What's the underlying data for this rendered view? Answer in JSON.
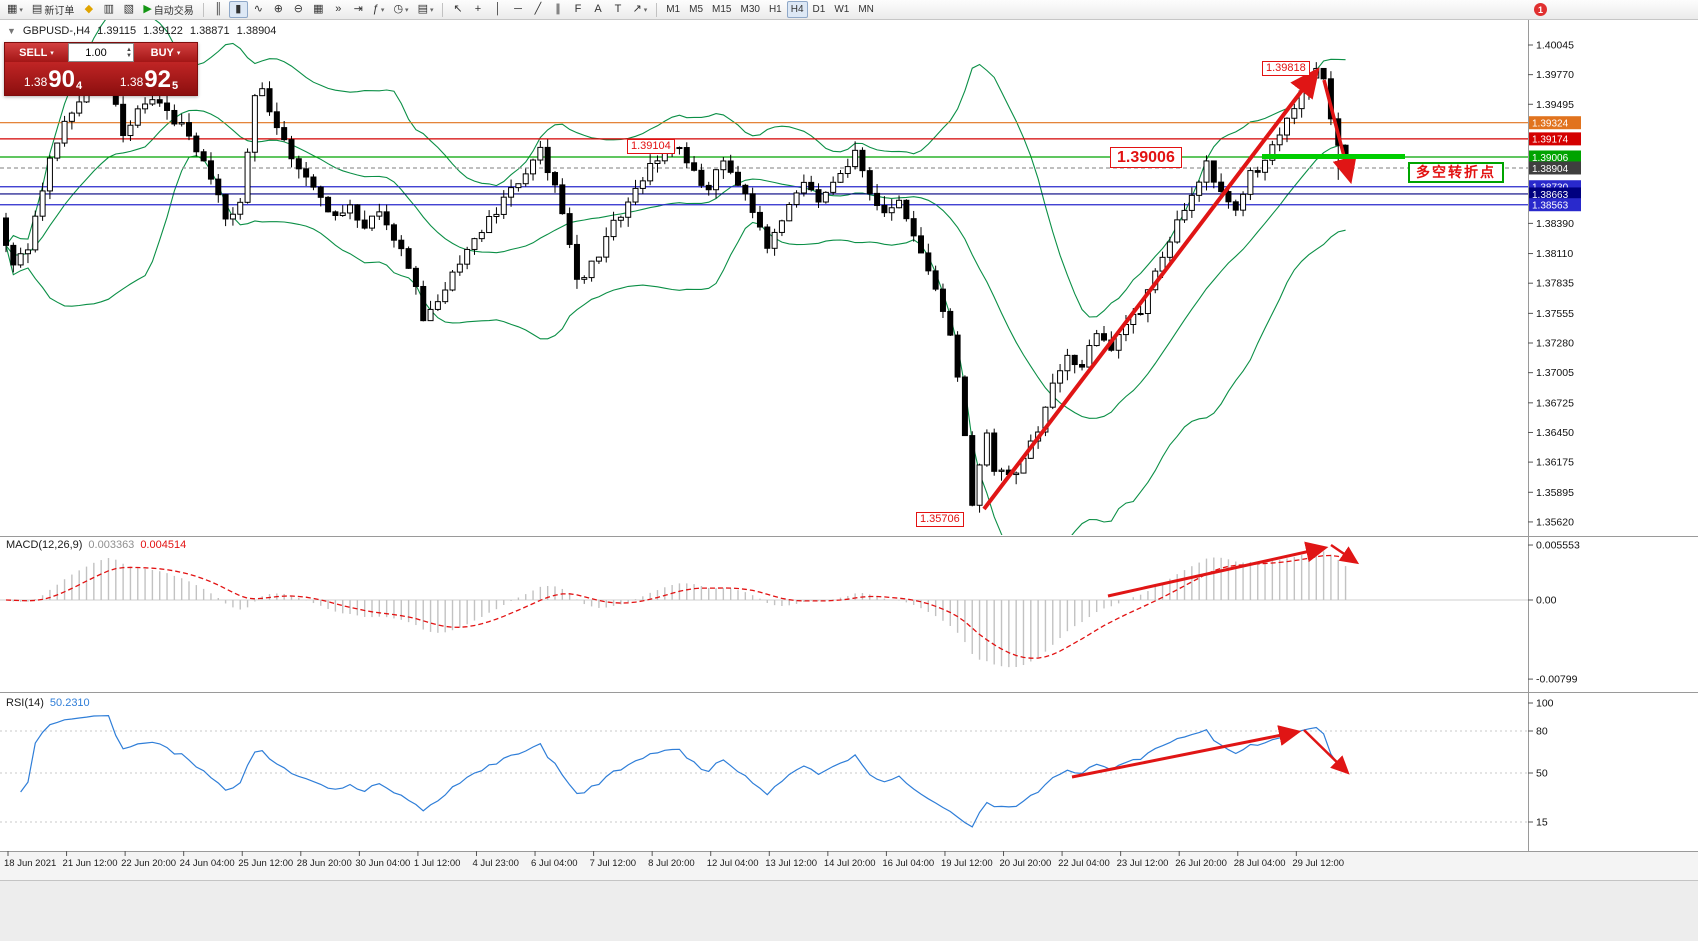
{
  "toolbar": {
    "badge": "1",
    "groups": [
      {
        "name": "standard",
        "items": [
          {
            "name": "new-chart",
            "glyph": "▦",
            "caret": true
          },
          {
            "name": "new-order",
            "glyph": "▤",
            "label": "新订单"
          },
          {
            "name": "metaeditor",
            "glyph": "◆",
            "color": "#e0a400"
          },
          {
            "name": "market-watch",
            "glyph": "▥"
          },
          {
            "name": "strategy-tester",
            "glyph": "▧"
          },
          {
            "name": "autotrading",
            "glyph": "▶",
            "label": "自动交易",
            "color": "#149614"
          }
        ]
      },
      {
        "name": "chart-controls",
        "items": [
          {
            "name": "bar-chart",
            "glyph": "║"
          },
          {
            "name": "candlestick-chart",
            "glyph": "▮",
            "active": true
          },
          {
            "name": "line-chart",
            "glyph": "∿"
          },
          {
            "name": "zoom-in",
            "glyph": "⊕"
          },
          {
            "name": "zoom-out",
            "glyph": "⊖"
          },
          {
            "name": "tile-windows",
            "glyph": "▦"
          },
          {
            "name": "auto-scroll",
            "glyph": "»"
          },
          {
            "name": "chart-shift",
            "glyph": "⇥"
          },
          {
            "name": "indicators",
            "glyph": "ƒ",
            "caret": true
          },
          {
            "name": "periods",
            "glyph": "◷",
            "caret": true
          },
          {
            "name": "templates",
            "glyph": "▤",
            "caret": true
          }
        ]
      },
      {
        "name": "line-studies",
        "items": [
          {
            "name": "cursor",
            "glyph": "↖"
          },
          {
            "name": "crosshair",
            "glyph": "+"
          },
          {
            "name": "vertical-line",
            "glyph": "│"
          },
          {
            "name": "horizontal-line",
            "glyph": "─"
          },
          {
            "name": "trendline",
            "glyph": "╱"
          },
          {
            "name": "equidistant-channel",
            "glyph": "∥"
          },
          {
            "name": "fibonacci-retracement",
            "glyph": "F"
          },
          {
            "name": "text",
            "glyph": "A"
          },
          {
            "name": "text-label",
            "glyph": "T"
          },
          {
            "name": "arrows",
            "glyph": "↗",
            "caret": true
          }
        ]
      },
      {
        "name": "timeframes",
        "items": [
          {
            "name": "timeframe-m1",
            "label": "M1"
          },
          {
            "name": "timeframe-m5",
            "label": "M5"
          },
          {
            "name": "timeframe-m15",
            "label": "M15"
          },
          {
            "name": "timeframe-m30",
            "label": "M30"
          },
          {
            "name": "timeframe-h1",
            "label": "H1"
          },
          {
            "name": "timeframe-h4",
            "label": "H4",
            "active": true
          },
          {
            "name": "timeframe-d1",
            "label": "D1"
          },
          {
            "name": "timeframe-w1",
            "label": "W1"
          },
          {
            "name": "timeframe-mn",
            "label": "MN"
          }
        ]
      }
    ]
  },
  "chart": {
    "info": {
      "symbol": "GBPUSD-,H4",
      "open": "1.39115",
      "high": "1.39122",
      "low": "1.38871",
      "close": "1.38904"
    },
    "trade_panel": {
      "sell_label": "SELL",
      "buy_label": "BUY",
      "volume": "1.00",
      "sell_small": "1.38",
      "sell_big": "90",
      "sell_sup": "4",
      "buy_small": "1.38",
      "buy_big": "92",
      "buy_sup": "5"
    },
    "annotations": {
      "high": "1.39818",
      "swing": "1.39104",
      "key_level": "1.39006",
      "low": "1.35706",
      "turning_point": "多空转折点"
    },
    "hlines": [
      {
        "price": 1.39324,
        "color": "#e1731e",
        "style": "solid"
      },
      {
        "price": 1.39174,
        "color": "#d40000",
        "style": "solid"
      },
      {
        "price": 1.39006,
        "color": "#00a300",
        "style": "solid"
      },
      {
        "price": 1.38904,
        "color": "#999999",
        "style": "dash"
      },
      {
        "price": 1.3873,
        "color": "#2929cc",
        "style": "solid"
      },
      {
        "price": 1.38663,
        "color": "#000080",
        "style": "solid"
      },
      {
        "price": 1.38563,
        "color": "#2929cc",
        "style": "solid"
      }
    ],
    "price_axis": {
      "ticks": [
        "1.40045",
        "1.39770",
        "1.39495",
        "1.38390",
        "1.38110",
        "1.37835",
        "1.37555",
        "1.37280",
        "1.37005",
        "1.36725",
        "1.36450",
        "1.36175",
        "1.35895",
        "1.35620"
      ],
      "tags": [
        {
          "value": "1.39324",
          "color": "#e1731e"
        },
        {
          "value": "1.39174",
          "color": "#d40000"
        },
        {
          "value": "1.39006",
          "color": "#00a300"
        },
        {
          "value": "1.38904",
          "color": "#3f3f3f"
        },
        {
          "value": "1.38730",
          "color": "#2929cc"
        },
        {
          "value": "1.38663",
          "color": "#000080"
        },
        {
          "value": "1.38563",
          "color": "#2929cc"
        }
      ]
    }
  },
  "macd": {
    "name": "MACD(12,26,9)",
    "main_value": "0.003363",
    "signal_value": "0.004514",
    "axis_labels": [
      "0.005553",
      "0.00",
      "-0.00799"
    ]
  },
  "rsi": {
    "name": "RSI(14)",
    "value": "50.2310",
    "axis_labels": [
      "100",
      "80",
      "50",
      "15"
    ]
  },
  "time_axis": {
    "labels": [
      "18 Jun 2021",
      "21 Jun 12:00",
      "22 Jun 20:00",
      "24 Jun 04:00",
      "25 Jun 12:00",
      "28 Jun 20:00",
      "30 Jun 04:00",
      "1 Jul 12:00",
      "4 Jul 23:00",
      "6 Jul 04:00",
      "7 Jul 12:00",
      "8 Jul 20:00",
      "12 Jul 04:00",
      "13 Jul 12:00",
      "14 Jul 20:00",
      "16 Jul 04:00",
      "19 Jul 12:00",
      "20 Jul 20:00",
      "22 Jul 04:00",
      "23 Jul 12:00",
      "26 Jul 20:00",
      "28 Jul 04:00",
      "29 Jul 12:00"
    ]
  },
  "chart_data": {
    "type": "candlestick",
    "symbol": "GBPUSD",
    "timeframe": "H4",
    "y_axis_range": [
      1.355,
      1.403
    ],
    "current_ohlc": {
      "open": 1.39115,
      "high": 1.39122,
      "low": 1.38871,
      "close": 1.38904
    },
    "marked_high": 1.39818,
    "marked_low": 1.35706,
    "marked_swing": 1.39104,
    "key_levels": [
      1.39324,
      1.39174,
      1.39006,
      1.3873,
      1.38663,
      1.38563
    ],
    "indicators": [
      {
        "name": "Bollinger Bands",
        "period": 20,
        "deviation": 2
      },
      {
        "name": "MACD",
        "params": [
          12,
          26,
          9
        ],
        "values": [
          0.003363,
          0.004514
        ]
      },
      {
        "name": "RSI",
        "period": 14,
        "value": 50.231
      }
    ],
    "num_candles": 184,
    "price_path_anchors": [
      [
        0,
        1.3838
      ],
      [
        2,
        1.3798
      ],
      [
        4,
        1.3818
      ],
      [
        7,
        1.39
      ],
      [
        10,
        1.3945
      ],
      [
        13,
        1.3975
      ],
      [
        15,
        1.3988
      ],
      [
        17,
        1.3918
      ],
      [
        19,
        1.3948
      ],
      [
        22,
        1.3952
      ],
      [
        25,
        1.3928
      ],
      [
        28,
        1.39
      ],
      [
        30,
        1.3868
      ],
      [
        31,
        1.384
      ],
      [
        33,
        1.3862
      ],
      [
        35,
        1.3958
      ],
      [
        36,
        1.3968
      ],
      [
        38,
        1.3925
      ],
      [
        41,
        1.3888
      ],
      [
        44,
        1.3862
      ],
      [
        46,
        1.3845
      ],
      [
        48,
        1.3852
      ],
      [
        50,
        1.3832
      ],
      [
        52,
        1.385
      ],
      [
        54,
        1.3825
      ],
      [
        56,
        1.3802
      ],
      [
        58,
        1.3752
      ],
      [
        60,
        1.3768
      ],
      [
        63,
        1.3805
      ],
      [
        66,
        1.3832
      ],
      [
        69,
        1.3862
      ],
      [
        72,
        1.3888
      ],
      [
        74,
        1.3905
      ],
      [
        76,
        1.3872
      ],
      [
        78,
        1.382
      ],
      [
        79,
        1.3785
      ],
      [
        81,
        1.38
      ],
      [
        84,
        1.3838
      ],
      [
        87,
        1.3872
      ],
      [
        90,
        1.39
      ],
      [
        93,
        1.391
      ],
      [
        95,
        1.3885
      ],
      [
        97,
        1.3872
      ],
      [
        99,
        1.39
      ],
      [
        102,
        1.3868
      ],
      [
        104,
        1.3832
      ],
      [
        105,
        1.3812
      ],
      [
        107,
        1.3845
      ],
      [
        110,
        1.3882
      ],
      [
        112,
        1.3862
      ],
      [
        115,
        1.3888
      ],
      [
        117,
        1.3905
      ],
      [
        119,
        1.3868
      ],
      [
        121,
        1.3845
      ],
      [
        123,
        1.3858
      ],
      [
        125,
        1.3832
      ],
      [
        127,
        1.3795
      ],
      [
        129,
        1.3755
      ],
      [
        130,
        1.3735
      ],
      [
        131,
        1.37
      ],
      [
        132,
        1.3645
      ],
      [
        133,
        1.3578
      ],
      [
        134,
        1.3612
      ],
      [
        135,
        1.364
      ],
      [
        136,
        1.3612
      ],
      [
        138,
        1.3602
      ],
      [
        140,
        1.3618
      ],
      [
        142,
        1.365
      ],
      [
        144,
        1.369
      ],
      [
        146,
        1.3712
      ],
      [
        148,
        1.3702
      ],
      [
        150,
        1.374
      ],
      [
        152,
        1.3726
      ],
      [
        154,
        1.3744
      ],
      [
        156,
        1.376
      ],
      [
        158,
        1.379
      ],
      [
        160,
        1.3824
      ],
      [
        162,
        1.3854
      ],
      [
        164,
        1.3874
      ],
      [
        165,
        1.3892
      ],
      [
        167,
        1.387
      ],
      [
        169,
        1.3856
      ],
      [
        171,
        1.3884
      ],
      [
        173,
        1.3896
      ],
      [
        175,
        1.3922
      ],
      [
        177,
        1.395
      ],
      [
        179,
        1.3972
      ],
      [
        180,
        1.3981
      ],
      [
        181,
        1.3974
      ],
      [
        182,
        1.3938
      ],
      [
        183,
        1.389
      ]
    ]
  }
}
